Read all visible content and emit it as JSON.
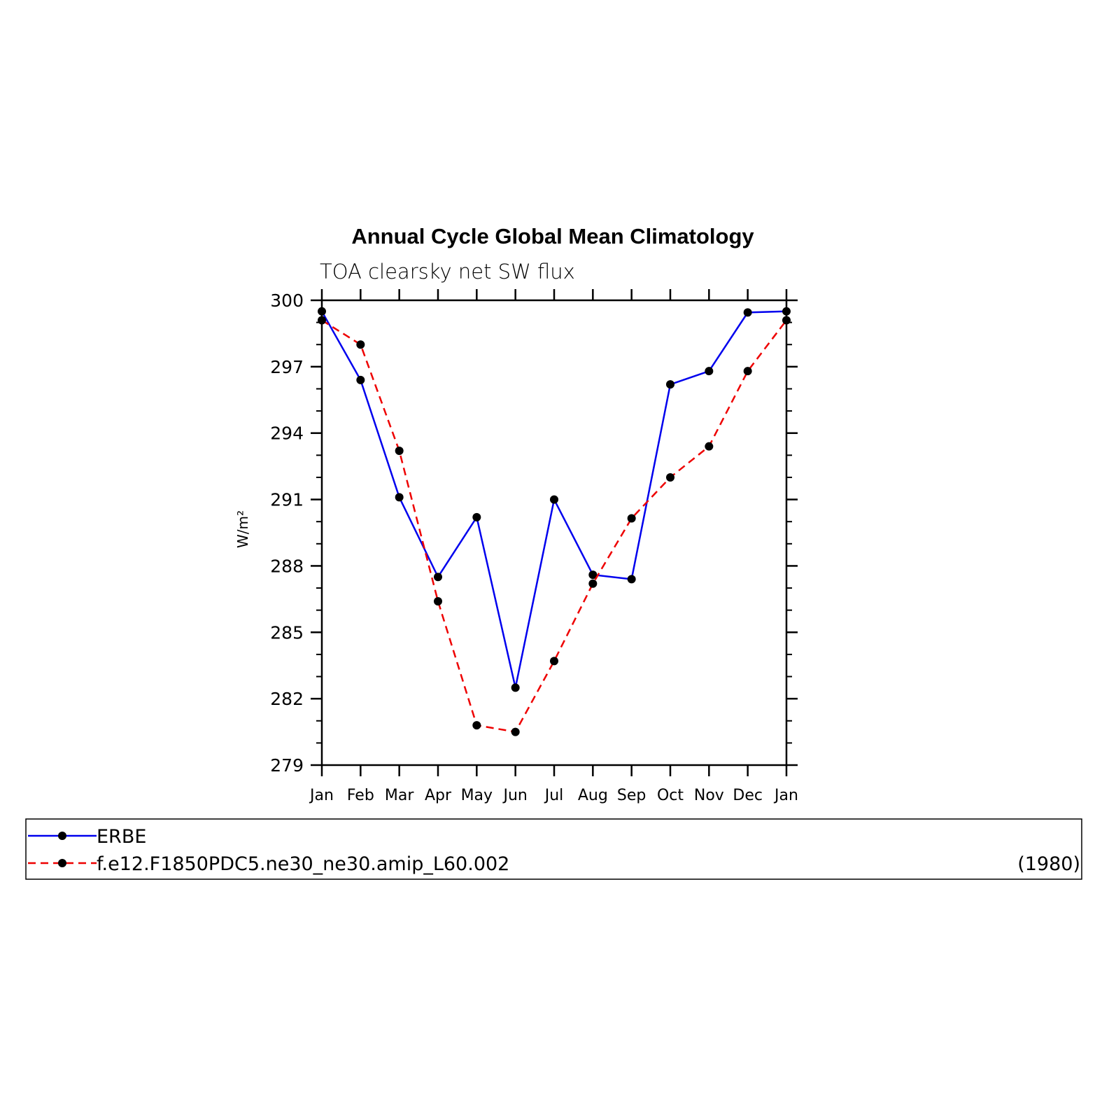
{
  "chart_data": {
    "type": "line",
    "title": "Annual Cycle Global Mean Climatology",
    "subtitle": "TOA clearsky net SW flux",
    "xlabel": "",
    "ylabel": "W/m²",
    "categories": [
      "Jan",
      "Feb",
      "Mar",
      "Apr",
      "May",
      "Jun",
      "Jul",
      "Aug",
      "Sep",
      "Oct",
      "Nov",
      "Dec",
      "Jan"
    ],
    "ylim": [
      279,
      300
    ],
    "yticks": [
      "279",
      "282",
      "285",
      "288",
      "291",
      "294",
      "297",
      "300"
    ],
    "grid": false,
    "legend_position": "bottom",
    "series": [
      {
        "name": "ERBE",
        "color": "#0000ee",
        "style": "solid",
        "marker": "circle",
        "values": [
          299.5,
          296.4,
          291.1,
          287.5,
          290.2,
          282.5,
          291.0,
          287.6,
          287.4,
          296.2,
          296.8,
          299.45,
          299.5
        ]
      },
      {
        "name": "f.e12.F1850PDC5.ne30_ne30.amip_L60.002",
        "note": "(1980)",
        "color": "#ee0000",
        "style": "dashed",
        "marker": "circle",
        "values": [
          299.1,
          298.0,
          293.2,
          286.4,
          280.8,
          280.5,
          283.7,
          287.2,
          290.15,
          292.0,
          293.4,
          296.8,
          299.1
        ]
      }
    ]
  }
}
